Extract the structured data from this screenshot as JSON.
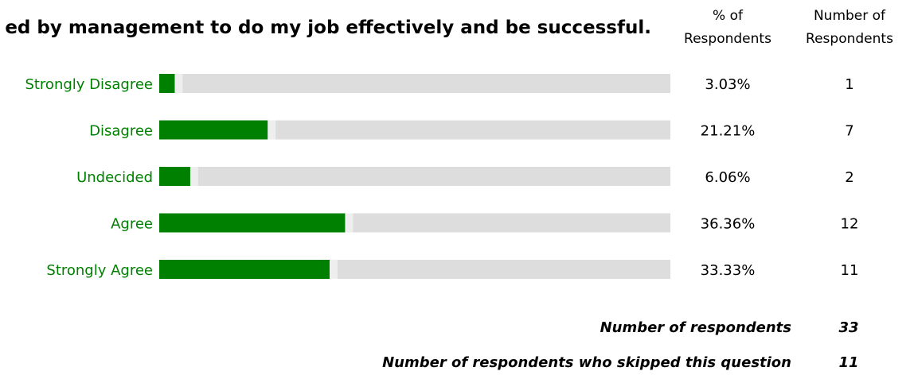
{
  "chart_data": {
    "type": "bar",
    "title": "ed by management to do my job effectively and be successful.",
    "columns": {
      "percent_header": [
        "% of",
        "Respondents"
      ],
      "count_header": [
        "Number of",
        "Respondents"
      ]
    },
    "categories": [
      "Strongly Disagree",
      "Disagree",
      "Undecided",
      "Agree",
      "Strongly Agree"
    ],
    "values": [
      3.03,
      21.21,
      6.06,
      36.36,
      33.33
    ],
    "percent_labels": [
      "3.03%",
      "21.21%",
      "6.06%",
      "36.36%",
      "33.33%"
    ],
    "counts": [
      "1",
      "7",
      "2",
      "12",
      "11"
    ],
    "xlim": [
      0,
      100
    ],
    "colors": {
      "bar": "#008000",
      "label": "#008000",
      "track": "#dddddd",
      "track_light": "#eeeeee"
    }
  },
  "summary": [
    {
      "label": "Number of respondents",
      "value": "33"
    },
    {
      "label": "Number of respondents who skipped this question",
      "value": "11"
    }
  ]
}
